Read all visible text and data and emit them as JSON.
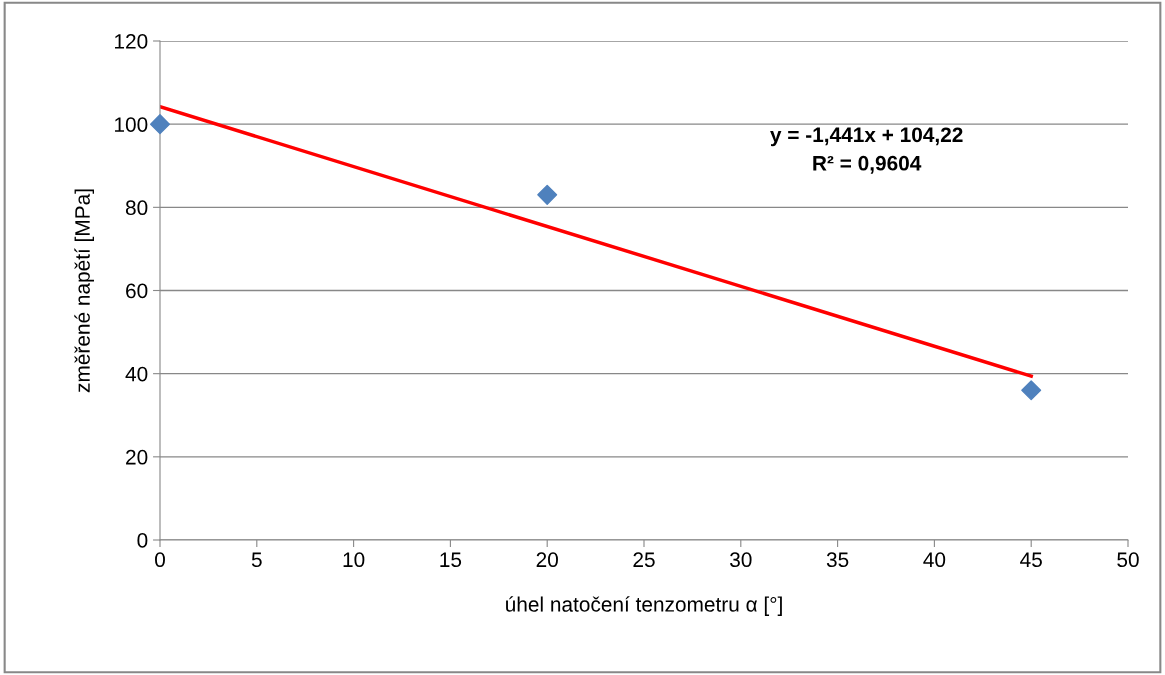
{
  "chart_data": {
    "type": "scatter",
    "xlabel": "úhel natočení tenzometru α [°]",
    "ylabel": "změřené napětí [MPa]",
    "series": [
      {
        "color": "#4f81bd",
        "x": [
          0,
          20,
          45
        ],
        "values": [
          100,
          83,
          36
        ],
        "marker": "diamond"
      },
      {
        "type": "line",
        "color": "#ff0000",
        "x": [
          0,
          45
        ],
        "values": [
          104.2,
          39.4
        ],
        "marker": "none",
        "line_style": "solid"
      }
    ],
    "annotations": [
      "y = -1,441x + 104,22\nR² = 0,9604"
    ],
    "xlim": [
      0,
      50
    ],
    "xticks": [
      0,
      5,
      10,
      15,
      20,
      25,
      30,
      35,
      40,
      45,
      50
    ],
    "ylim": [
      0,
      120
    ],
    "yticks": [
      0,
      20,
      40,
      60,
      80,
      100,
      120
    ],
    "grid": "y",
    "legend": false
  }
}
